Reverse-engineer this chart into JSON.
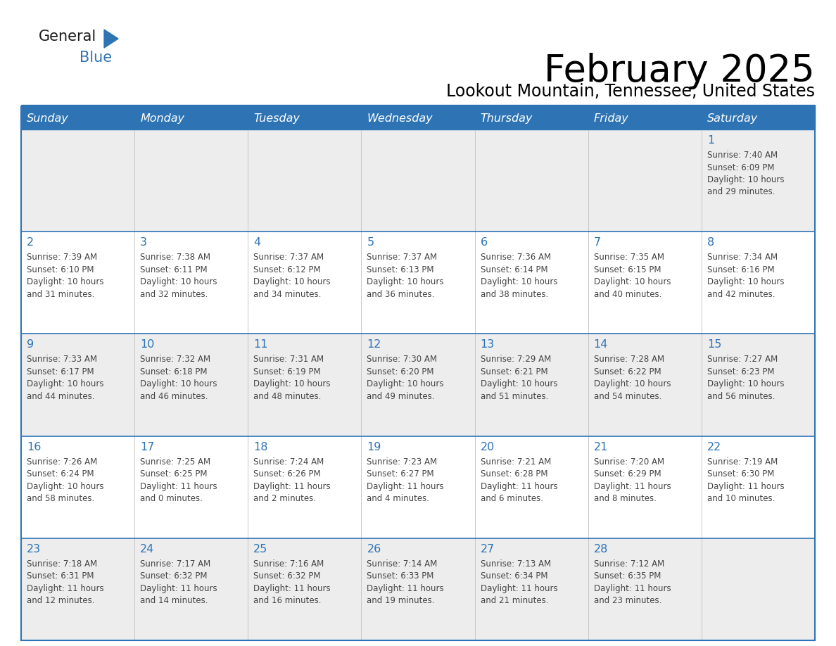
{
  "title": "February 2025",
  "subtitle": "Lookout Mountain, Tennessee, United States",
  "header_bg": "#2E74B5",
  "header_text_color": "#FFFFFF",
  "cell_bg_odd": "#EDEDED",
  "cell_bg_even": "#FFFFFF",
  "separator_color": "#2E74B5",
  "text_color": "#444444",
  "day_num_color": "#2E74B5",
  "days_of_week": [
    "Sunday",
    "Monday",
    "Tuesday",
    "Wednesday",
    "Thursday",
    "Friday",
    "Saturday"
  ],
  "logo_general_color": "#1a1a1a",
  "logo_blue_color": "#2E74B5",
  "logo_triangle_color": "#2E74B5",
  "calendar_data": [
    [
      null,
      null,
      null,
      null,
      null,
      null,
      {
        "day": "1",
        "sunrise": "7:40 AM",
        "sunset": "6:09 PM",
        "daylight_line1": "10 hours",
        "daylight_line2": "and 29 minutes."
      }
    ],
    [
      {
        "day": "2",
        "sunrise": "7:39 AM",
        "sunset": "6:10 PM",
        "daylight_line1": "10 hours",
        "daylight_line2": "and 31 minutes."
      },
      {
        "day": "3",
        "sunrise": "7:38 AM",
        "sunset": "6:11 PM",
        "daylight_line1": "10 hours",
        "daylight_line2": "and 32 minutes."
      },
      {
        "day": "4",
        "sunrise": "7:37 AM",
        "sunset": "6:12 PM",
        "daylight_line1": "10 hours",
        "daylight_line2": "and 34 minutes."
      },
      {
        "day": "5",
        "sunrise": "7:37 AM",
        "sunset": "6:13 PM",
        "daylight_line1": "10 hours",
        "daylight_line2": "and 36 minutes."
      },
      {
        "day": "6",
        "sunrise": "7:36 AM",
        "sunset": "6:14 PM",
        "daylight_line1": "10 hours",
        "daylight_line2": "and 38 minutes."
      },
      {
        "day": "7",
        "sunrise": "7:35 AM",
        "sunset": "6:15 PM",
        "daylight_line1": "10 hours",
        "daylight_line2": "and 40 minutes."
      },
      {
        "day": "8",
        "sunrise": "7:34 AM",
        "sunset": "6:16 PM",
        "daylight_line1": "10 hours",
        "daylight_line2": "and 42 minutes."
      }
    ],
    [
      {
        "day": "9",
        "sunrise": "7:33 AM",
        "sunset": "6:17 PM",
        "daylight_line1": "10 hours",
        "daylight_line2": "and 44 minutes."
      },
      {
        "day": "10",
        "sunrise": "7:32 AM",
        "sunset": "6:18 PM",
        "daylight_line1": "10 hours",
        "daylight_line2": "and 46 minutes."
      },
      {
        "day": "11",
        "sunrise": "7:31 AM",
        "sunset": "6:19 PM",
        "daylight_line1": "10 hours",
        "daylight_line2": "and 48 minutes."
      },
      {
        "day": "12",
        "sunrise": "7:30 AM",
        "sunset": "6:20 PM",
        "daylight_line1": "10 hours",
        "daylight_line2": "and 49 minutes."
      },
      {
        "day": "13",
        "sunrise": "7:29 AM",
        "sunset": "6:21 PM",
        "daylight_line1": "10 hours",
        "daylight_line2": "and 51 minutes."
      },
      {
        "day": "14",
        "sunrise": "7:28 AM",
        "sunset": "6:22 PM",
        "daylight_line1": "10 hours",
        "daylight_line2": "and 54 minutes."
      },
      {
        "day": "15",
        "sunrise": "7:27 AM",
        "sunset": "6:23 PM",
        "daylight_line1": "10 hours",
        "daylight_line2": "and 56 minutes."
      }
    ],
    [
      {
        "day": "16",
        "sunrise": "7:26 AM",
        "sunset": "6:24 PM",
        "daylight_line1": "10 hours",
        "daylight_line2": "and 58 minutes."
      },
      {
        "day": "17",
        "sunrise": "7:25 AM",
        "sunset": "6:25 PM",
        "daylight_line1": "11 hours",
        "daylight_line2": "and 0 minutes."
      },
      {
        "day": "18",
        "sunrise": "7:24 AM",
        "sunset": "6:26 PM",
        "daylight_line1": "11 hours",
        "daylight_line2": "and 2 minutes."
      },
      {
        "day": "19",
        "sunrise": "7:23 AM",
        "sunset": "6:27 PM",
        "daylight_line1": "11 hours",
        "daylight_line2": "and 4 minutes."
      },
      {
        "day": "20",
        "sunrise": "7:21 AM",
        "sunset": "6:28 PM",
        "daylight_line1": "11 hours",
        "daylight_line2": "and 6 minutes."
      },
      {
        "day": "21",
        "sunrise": "7:20 AM",
        "sunset": "6:29 PM",
        "daylight_line1": "11 hours",
        "daylight_line2": "and 8 minutes."
      },
      {
        "day": "22",
        "sunrise": "7:19 AM",
        "sunset": "6:30 PM",
        "daylight_line1": "11 hours",
        "daylight_line2": "and 10 minutes."
      }
    ],
    [
      {
        "day": "23",
        "sunrise": "7:18 AM",
        "sunset": "6:31 PM",
        "daylight_line1": "11 hours",
        "daylight_line2": "and 12 minutes."
      },
      {
        "day": "24",
        "sunrise": "7:17 AM",
        "sunset": "6:32 PM",
        "daylight_line1": "11 hours",
        "daylight_line2": "and 14 minutes."
      },
      {
        "day": "25",
        "sunrise": "7:16 AM",
        "sunset": "6:32 PM",
        "daylight_line1": "11 hours",
        "daylight_line2": "and 16 minutes."
      },
      {
        "day": "26",
        "sunrise": "7:14 AM",
        "sunset": "6:33 PM",
        "daylight_line1": "11 hours",
        "daylight_line2": "and 19 minutes."
      },
      {
        "day": "27",
        "sunrise": "7:13 AM",
        "sunset": "6:34 PM",
        "daylight_line1": "11 hours",
        "daylight_line2": "and 21 minutes."
      },
      {
        "day": "28",
        "sunrise": "7:12 AM",
        "sunset": "6:35 PM",
        "daylight_line1": "11 hours",
        "daylight_line2": "and 23 minutes."
      },
      null
    ]
  ]
}
